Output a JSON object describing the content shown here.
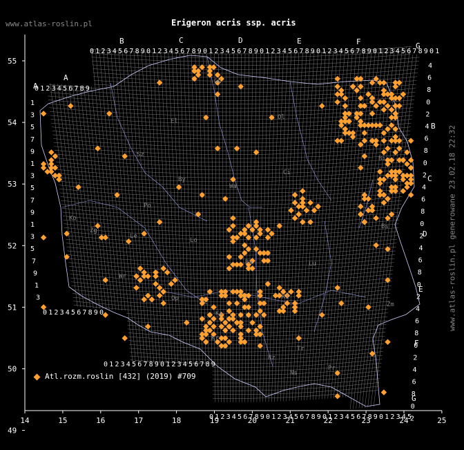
{
  "header": {
    "site": "www.atlas-roslin.pl",
    "title": "Erigeron acris ssp. acris"
  },
  "side_text": "www.atlas-roslin.pl generowane 23.02.18 22:32",
  "legend": {
    "label": "Atl.rozm.roslin [432] (2019) #709",
    "marker_color": "#ffa030"
  },
  "axes": {
    "x_ticks": [
      "14",
      "15",
      "16",
      "17",
      "18",
      "19",
      "20",
      "21",
      "22",
      "23",
      "24",
      "25"
    ],
    "y_ticks": [
      "55",
      "54",
      "53",
      "52",
      "51",
      "50",
      "49"
    ]
  },
  "grid": {
    "col_letters": [
      "A",
      "B",
      "C",
      "D",
      "E",
      "F",
      "G"
    ],
    "row_letters": [
      "A",
      "B",
      "C",
      "D",
      "E",
      "F",
      "G"
    ],
    "digits": [
      "0",
      "1",
      "2",
      "3",
      "4",
      "5",
      "6",
      "7",
      "8",
      "9"
    ],
    "row_digits": [
      "1",
      "3",
      "5",
      "7",
      "9"
    ],
    "row_digits_even": [
      "0",
      "2",
      "4",
      "6",
      "8"
    ]
  },
  "city_labels": [
    "Gd",
    "Ol",
    "El",
    "Sz",
    "Bi",
    "By",
    "Ci",
    "Wa",
    "Po",
    "Ko",
    "Bs",
    "Zg",
    "Le",
    "Lo",
    "Ra",
    "Lu",
    "Wr",
    "Ki",
    "Op",
    "Ka",
    "Kr",
    "Rz",
    "Tr",
    "Pr",
    "Zm",
    "Ns"
  ],
  "colors": {
    "background": "#000000",
    "grid": "#7a7a7a",
    "border": "#dddddd",
    "marker": "#ffa030"
  }
}
